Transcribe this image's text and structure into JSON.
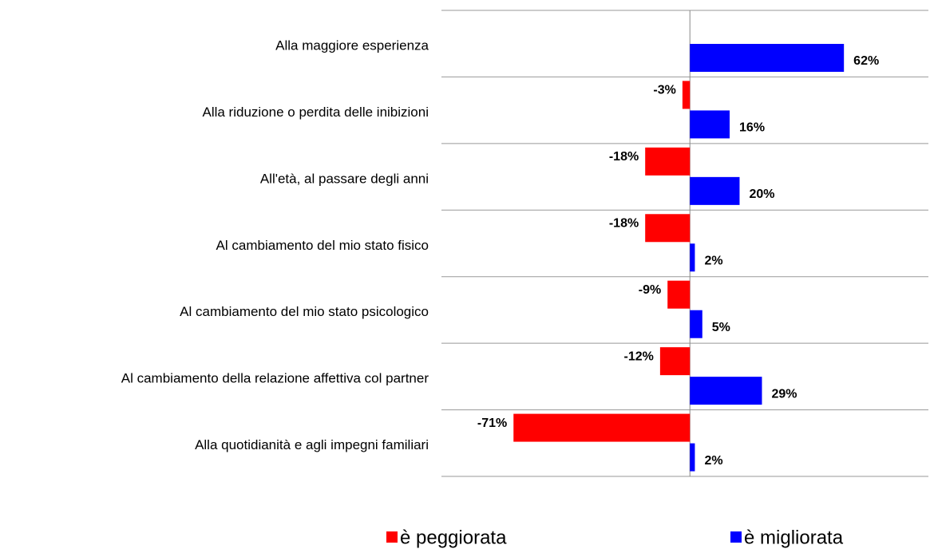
{
  "chart_data": {
    "type": "bar",
    "orientation": "horizontal",
    "categories": [
      "Alla maggiore esperienza",
      "Alla riduzione o perdita delle inibizioni",
      "All'età, al passare degli anni",
      "Al cambiamento del mio stato fisico",
      "Al cambiamento del mio stato psicologico",
      "Al cambiamento della relazione affettiva col partner",
      "Alla quotidianità e agli impegni familiari"
    ],
    "series": [
      {
        "name": "è peggiorata",
        "color": "#ff0000",
        "values": [
          null,
          -3,
          -18,
          -18,
          -9,
          -12,
          -71
        ],
        "value_labels": [
          null,
          "-3%",
          "-18%",
          "-18%",
          "-9%",
          "-12%",
          "-71%"
        ]
      },
      {
        "name": "è migliorata",
        "color": "#0000ff",
        "values": [
          62,
          16,
          20,
          2,
          5,
          29,
          2
        ],
        "value_labels": [
          "62%",
          "16%",
          "20%",
          "2%",
          "5%",
          "29%",
          "2%"
        ]
      }
    ],
    "xlim": [
      -100,
      96
    ],
    "legend": "bottom"
  }
}
